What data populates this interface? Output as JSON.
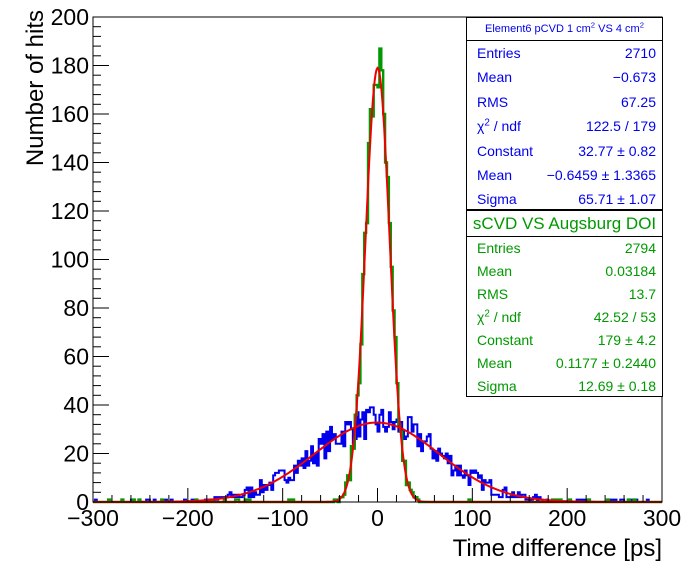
{
  "chart_data": {
    "type": "histogram",
    "xlabel": "Time difference [ps]",
    "ylabel": "Number of hits",
    "xlim": [
      -300,
      300
    ],
    "ylim": [
      0,
      200
    ],
    "x_ticks": [
      -300,
      -200,
      -100,
      0,
      100,
      200,
      300
    ],
    "y_ticks": [
      0,
      20,
      40,
      60,
      80,
      100,
      120,
      140,
      160,
      180,
      200
    ],
    "grid": false,
    "bin_width": 2,
    "series": [
      {
        "name": "Element6 pCVD 1 cm2 VS 4 cm2",
        "color": "#0000ee",
        "entries": 2710,
        "fit": {
          "constant": 32.77,
          "mean": -0.6459,
          "sigma": 65.71
        }
      },
      {
        "name": "sCVD VS Augsburg DOI",
        "color": "#009900",
        "entries": 2794,
        "fit": {
          "constant": 179,
          "mean": 0.1177,
          "sigma": 12.69
        }
      }
    ],
    "fit_color": "#ee0000"
  },
  "stats": [
    {
      "title_prefix": "Element6 pCVD 1 cm",
      "title_mid": " VS 4 cm",
      "title_sup": "2",
      "rows": [
        {
          "label": "Entries",
          "value": "2710"
        },
        {
          "label": "Mean",
          "value": "−0.673"
        },
        {
          "label": "RMS",
          "value": "67.25"
        },
        {
          "label_pre": "χ",
          "label_sup": "2",
          "label_post": " / ndf",
          "value": "122.5 / 179"
        },
        {
          "label": "Constant",
          "value": "32.77 ± 0.82"
        },
        {
          "label": "Mean",
          "value": "−0.6459 ± 1.3365"
        },
        {
          "label": "Sigma",
          "value": "65.71 ± 1.07"
        }
      ]
    },
    {
      "title": "sCVD VS Augsburg DOI",
      "rows": [
        {
          "label": "Entries",
          "value": "2794"
        },
        {
          "label": "Mean",
          "value": "0.03184"
        },
        {
          "label": "RMS",
          "value": "13.7"
        },
        {
          "label_pre": "χ",
          "label_sup": "2",
          "label_post": " / ndf",
          "value": "42.52 / 53"
        },
        {
          "label": "Constant",
          "value": "179 ± 4.2"
        },
        {
          "label": "Mean",
          "value": "0.1177 ± 0.2440"
        },
        {
          "label": "Sigma",
          "value": "12.69 ± 0.18"
        }
      ]
    }
  ]
}
